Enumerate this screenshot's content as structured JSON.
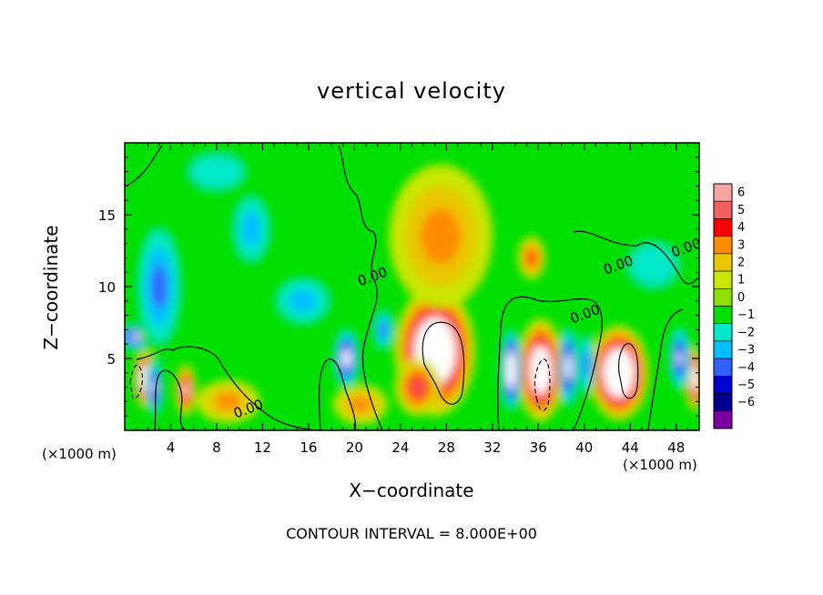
{
  "chart_data": {
    "type": "heatmap",
    "title": "vertical velocity",
    "xlabel": "X−coordinate",
    "ylabel": "Z−coordinate",
    "x_unit_left": "(×1000 m)",
    "x_unit_right": "(×1000 m)",
    "footer": "CONTOUR INTERVAL = 8.000E+00",
    "xlim": [
      0,
      50
    ],
    "ylim": [
      0,
      20
    ],
    "x_ticks": [
      4,
      8,
      12,
      16,
      20,
      24,
      28,
      32,
      36,
      40,
      44,
      48
    ],
    "x_tick_labels": [
      "4",
      "8",
      "12",
      "16",
      "20",
      "24",
      "28",
      "32",
      "36",
      "40",
      "44",
      "48"
    ],
    "y_ticks": [
      5,
      10,
      15
    ],
    "y_tick_labels": [
      "5",
      "10",
      "15"
    ],
    "colorbar": {
      "levels": [
        "6",
        "5",
        "4",
        "3",
        "2",
        "1",
        "0",
        "−1",
        "−2",
        "−3",
        "−4",
        "−5",
        "−6"
      ],
      "colors": [
        "#f5a3a3",
        "#f06060",
        "#ff0000",
        "#ff8c00",
        "#e8c800",
        "#c8e600",
        "#8ee000",
        "#00e000",
        "#00e8c8",
        "#00bfff",
        "#3060ff",
        "#0000d0",
        "#000090",
        "#7a00a0"
      ]
    },
    "contour_labels": [
      {
        "text": "0.00",
        "x": 10.9,
        "y": 1.2
      },
      {
        "text": "0.00",
        "x": 21.7,
        "y": 10.4
      },
      {
        "text": "0.00",
        "x": 40.2,
        "y": 7.8
      },
      {
        "text": "0.00",
        "x": 43.1,
        "y": 11.2
      },
      {
        "text": "0.00",
        "x": 49.0,
        "y": 12.4
      }
    ],
    "features": [
      {
        "kind": "updraft",
        "cx": 27.0,
        "cz": 5.5,
        "rx": 3.5,
        "rz": 4.5,
        "w": 9
      },
      {
        "kind": "updraft",
        "cx": 36.2,
        "cz": 4.2,
        "rx": 2.0,
        "rz": 3.6,
        "w": 8
      },
      {
        "kind": "updraft",
        "cx": 43.0,
        "cz": 4.0,
        "rx": 2.6,
        "rz": 3.3,
        "w": 9
      },
      {
        "kind": "updraft",
        "cx": 1.7,
        "cz": 3.6,
        "rx": 0.9,
        "rz": 2.0,
        "w": 8
      },
      {
        "kind": "updraft",
        "cx": 49.6,
        "cz": 3.6,
        "rx": 0.8,
        "rz": 2.3,
        "w": 7
      },
      {
        "kind": "updraft",
        "cx": 5.3,
        "cz": 2.8,
        "rx": 0.9,
        "rz": 1.8,
        "w": 5
      },
      {
        "kind": "updraft",
        "cx": 25.5,
        "cz": 3.0,
        "rx": 2.0,
        "rz": 2.0,
        "w": 4
      },
      {
        "kind": "updraft",
        "cx": 35.4,
        "cz": 12.0,
        "rx": 1.2,
        "rz": 1.5,
        "w": 3
      },
      {
        "kind": "updraft",
        "cx": 27.5,
        "cz": 13.5,
        "rx": 4.5,
        "rz": 5.0,
        "w": 2
      },
      {
        "kind": "updraft",
        "cx": 9.0,
        "cz": 2.0,
        "rx": 2.8,
        "rz": 1.5,
        "w": 2
      },
      {
        "kind": "updraft",
        "cx": 20.5,
        "cz": 1.8,
        "rx": 2.4,
        "rz": 1.4,
        "w": 2
      },
      {
        "kind": "downdraft",
        "cx": 33.6,
        "cz": 4.2,
        "rx": 1.0,
        "rz": 3.0,
        "w": -8
      },
      {
        "kind": "downdraft",
        "cx": 38.6,
        "cz": 4.4,
        "rx": 0.9,
        "rz": 3.0,
        "w": -6
      },
      {
        "kind": "downdraft",
        "cx": 40.2,
        "cz": 4.6,
        "rx": 0.8,
        "rz": 2.5,
        "w": -3
      },
      {
        "kind": "downdraft",
        "cx": 19.3,
        "cz": 5.0,
        "rx": 1.2,
        "rz": 2.2,
        "w": -6
      },
      {
        "kind": "downdraft",
        "cx": 48.3,
        "cz": 5.0,
        "rx": 1.0,
        "rz": 2.4,
        "w": -5
      },
      {
        "kind": "downdraft",
        "cx": 1.0,
        "cz": 6.5,
        "rx": 2.0,
        "rz": 1.0,
        "w": -5
      },
      {
        "kind": "downdraft",
        "cx": 2.6,
        "cz": 3.0,
        "rx": 0.8,
        "rz": 2.2,
        "w": -5
      },
      {
        "kind": "downdraft",
        "cx": 3.0,
        "cz": 10.0,
        "rx": 2.2,
        "rz": 5.0,
        "w": -3
      },
      {
        "kind": "downdraft",
        "cx": 11.0,
        "cz": 14.0,
        "rx": 2.0,
        "rz": 3.0,
        "w": -1.5
      },
      {
        "kind": "downdraft",
        "cx": 15.5,
        "cz": 9.0,
        "rx": 3.0,
        "rz": 2.0,
        "w": -1.5
      },
      {
        "kind": "downdraft",
        "cx": 22.5,
        "cz": 7.0,
        "rx": 1.0,
        "rz": 1.6,
        "w": -3
      },
      {
        "kind": "downdraft",
        "cx": 46.0,
        "cz": 11.5,
        "rx": 3.5,
        "rz": 2.5,
        "w": -1
      },
      {
        "kind": "downdraft",
        "cx": 8.0,
        "cz": 18.0,
        "rx": 4.0,
        "rz": 2.0,
        "w": -1
      }
    ]
  }
}
